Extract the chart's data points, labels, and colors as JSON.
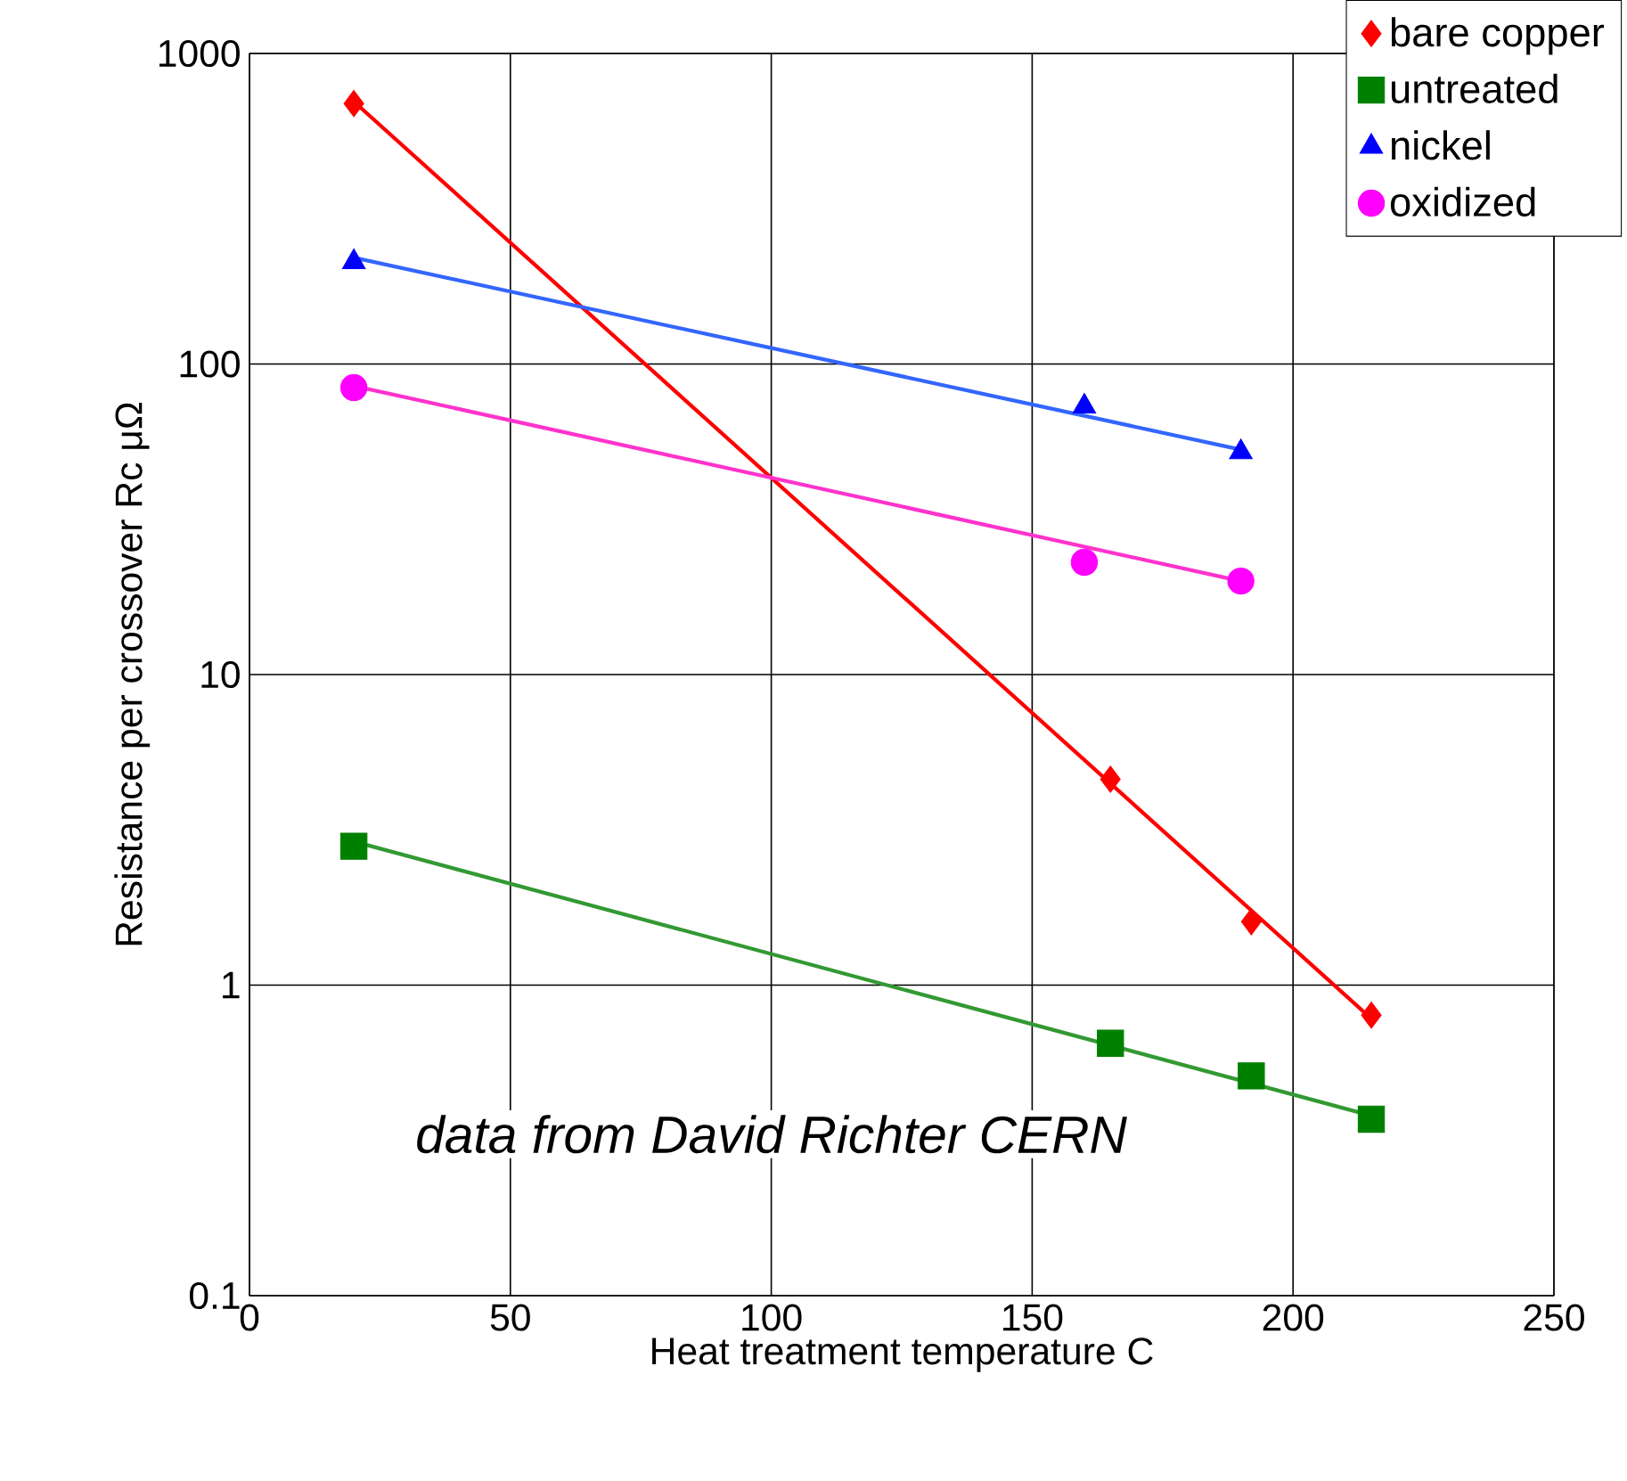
{
  "chart_data": {
    "type": "scatter",
    "xlabel": "Heat treatment temperature C",
    "ylabel": "Resistance per crossover Rc μΩ",
    "log": "y",
    "grid": true,
    "legend": "top right",
    "xlim": [
      0,
      250
    ],
    "xticks": [
      0,
      50,
      100,
      150,
      200,
      250
    ],
    "ylim": [
      0.1,
      1000
    ],
    "yticks": [
      0.1,
      1,
      10,
      100,
      1000
    ],
    "series": [
      {
        "name": "bare copper",
        "color": "#ff0000",
        "marker": "diamond",
        "x": [
          20,
          165,
          192,
          215
        ],
        "values": [
          690,
          4.6,
          1.6,
          0.8
        ]
      },
      {
        "name": "untreated",
        "color": "#008000",
        "marker": "square",
        "x": [
          20,
          165,
          192,
          215
        ],
        "values": [
          2.8,
          0.65,
          0.51,
          0.37
        ]
      },
      {
        "name": "nickel",
        "color": "#0000ff",
        "marker": "triangle",
        "x": [
          20,
          160,
          190
        ],
        "values": [
          213,
          73,
          52
        ]
      },
      {
        "name": "oxidized",
        "color": "#ff00ff",
        "marker": "circle",
        "x": [
          20,
          160,
          190
        ],
        "values": [
          84,
          23,
          20
        ]
      },
      {
        "type": "line",
        "color": "#ff0000",
        "x": [
          20,
          215
        ],
        "values": [
          700,
          0.78
        ]
      },
      {
        "type": "line",
        "color": "#339933",
        "x": [
          20,
          215
        ],
        "values": [
          2.9,
          0.38
        ]
      },
      {
        "type": "line",
        "color": "#3366ff",
        "x": [
          20,
          190
        ],
        "values": [
          220,
          53
        ]
      },
      {
        "type": "line",
        "color": "#ff33cc",
        "x": [
          20,
          190
        ],
        "values": [
          85,
          20
        ]
      }
    ],
    "annotations": [
      {
        "text": "data from David Richter CERN"
      }
    ]
  }
}
